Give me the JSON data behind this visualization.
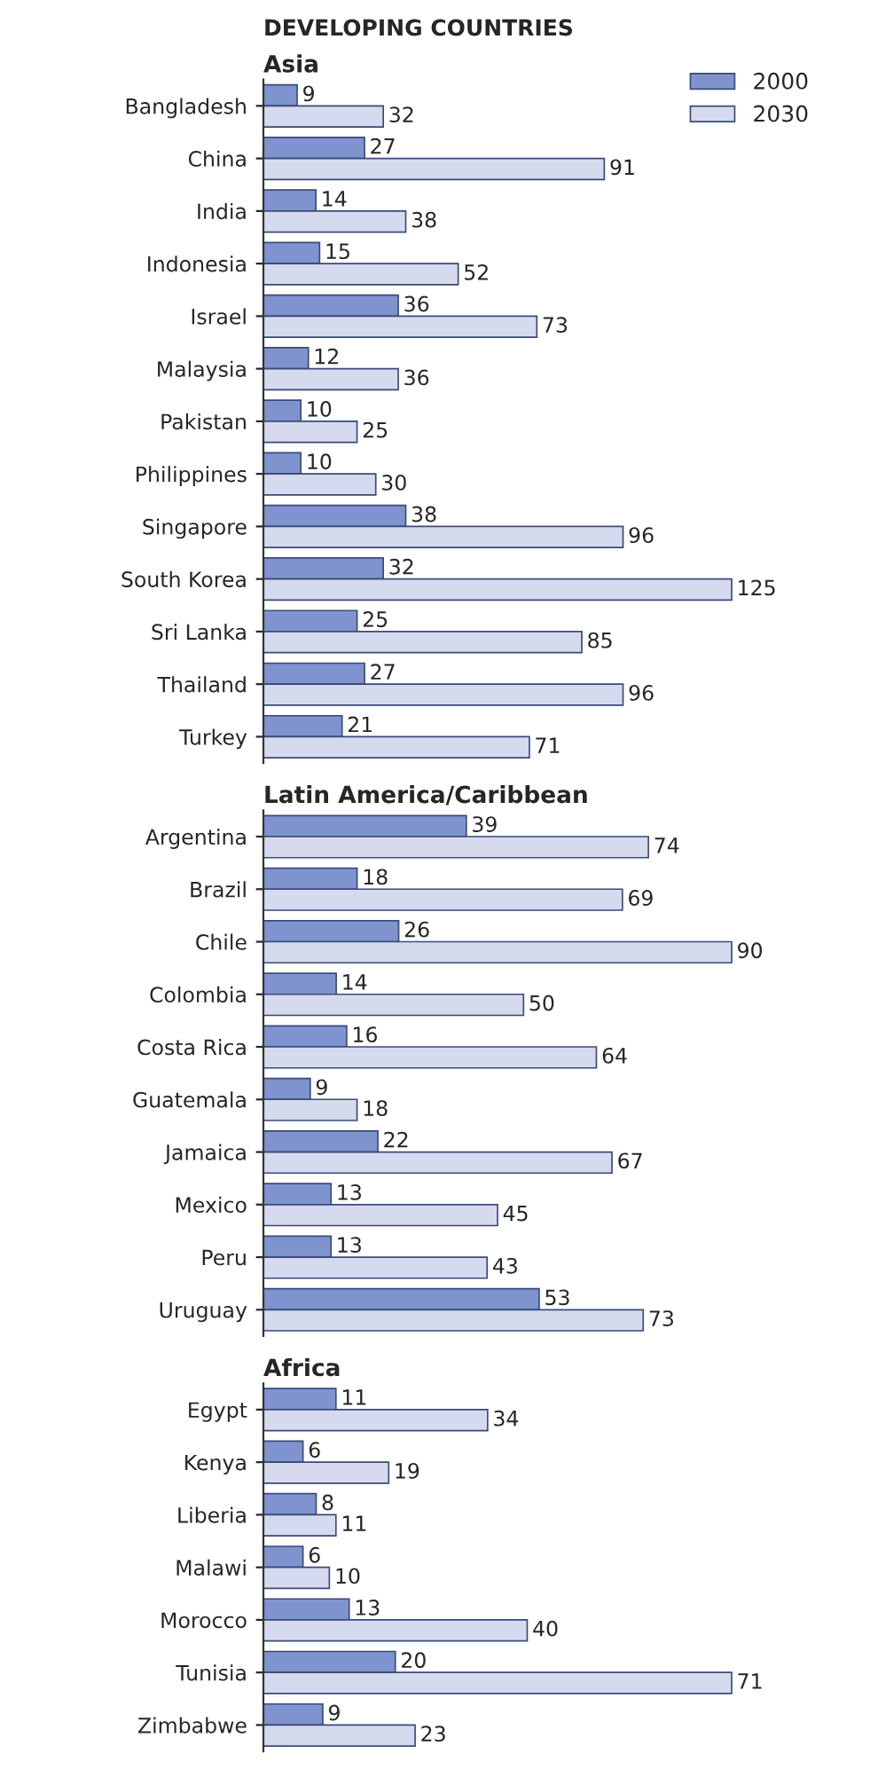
{
  "chart_data": [
    {
      "type": "bar",
      "orientation": "horizontal",
      "title": "DEVELOPING COUNTRIES",
      "subtitle": "Asia",
      "categories": [
        "Bangladesh",
        "China",
        "India",
        "Indonesia",
        "Israel",
        "Malaysia",
        "Pakistan",
        "Philippines",
        "Singapore",
        "South Korea",
        "Sri Lanka",
        "Thailand",
        "Turkey"
      ],
      "series": [
        {
          "name": "2000",
          "color": "#7f93cf",
          "values": [
            9,
            27,
            14,
            15,
            36,
            12,
            10,
            10,
            38,
            32,
            25,
            27,
            21
          ]
        },
        {
          "name": "2030",
          "color": "#d6daee",
          "values": [
            32,
            91,
            38,
            52,
            73,
            36,
            25,
            30,
            96,
            125,
            85,
            96,
            71
          ]
        }
      ],
      "tick_labels": "y",
      "data_labels": true,
      "legend": "top right"
    },
    {
      "type": "bar",
      "orientation": "horizontal",
      "title": "Latin America/Caribbean",
      "categories": [
        "Argentina",
        "Brazil",
        "Chile",
        "Colombia",
        "Costa Rica",
        "Guatemala",
        "Jamaica",
        "Mexico",
        "Peru",
        "Uruguay"
      ],
      "series": [
        {
          "color": "#7f93cf",
          "values": [
            39,
            18,
            26,
            14,
            16,
            9,
            22,
            13,
            13,
            53
          ]
        },
        {
          "color": "#d6daee",
          "values": [
            74,
            69,
            90,
            50,
            64,
            18,
            67,
            45,
            43,
            73
          ]
        }
      ],
      "tick_labels": "y",
      "data_labels": true
    },
    {
      "type": "bar",
      "orientation": "horizontal",
      "title": "Africa",
      "categories": [
        "Egypt",
        "Kenya",
        "Liberia",
        "Malawi",
        "Morocco",
        "Tunisia",
        "Zimbabwe"
      ],
      "series": [
        {
          "color": "#7f93cf",
          "values": [
            11,
            6,
            8,
            6,
            13,
            20,
            9
          ]
        },
        {
          "color": "#d6daee",
          "values": [
            34,
            19,
            11,
            10,
            40,
            71,
            23
          ]
        }
      ],
      "tick_labels": "y",
      "data_labels": true
    }
  ]
}
